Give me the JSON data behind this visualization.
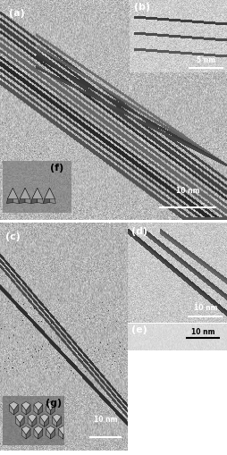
{
  "figsize": [
    2.55,
    5.1
  ],
  "dpi": 100,
  "background_color": "#ffffff",
  "label_fontsize": 8,
  "scalebar_fontsize": 5.5,
  "panels": {
    "a": {
      "label": "(a)",
      "scalebar": "10 nm",
      "seed": 42,
      "base": 0.72
    },
    "b": {
      "label": "(b)",
      "scalebar": "5 nm",
      "seed": 7,
      "base": 0.8
    },
    "c": {
      "label": "(c)",
      "scalebar": "10 nm",
      "seed": 55,
      "base": 0.7
    },
    "d": {
      "label": "(d)",
      "scalebar": "10 nm",
      "seed": 33,
      "base": 0.78
    },
    "e": {
      "label": "(e)",
      "scalebar": "10 nm",
      "seed": 22,
      "base": 0.85
    },
    "f": {
      "label": "(f)",
      "seed": 11,
      "base": 0.55
    },
    "g": {
      "label": "(g)",
      "seed": 88,
      "base": 0.5
    }
  }
}
